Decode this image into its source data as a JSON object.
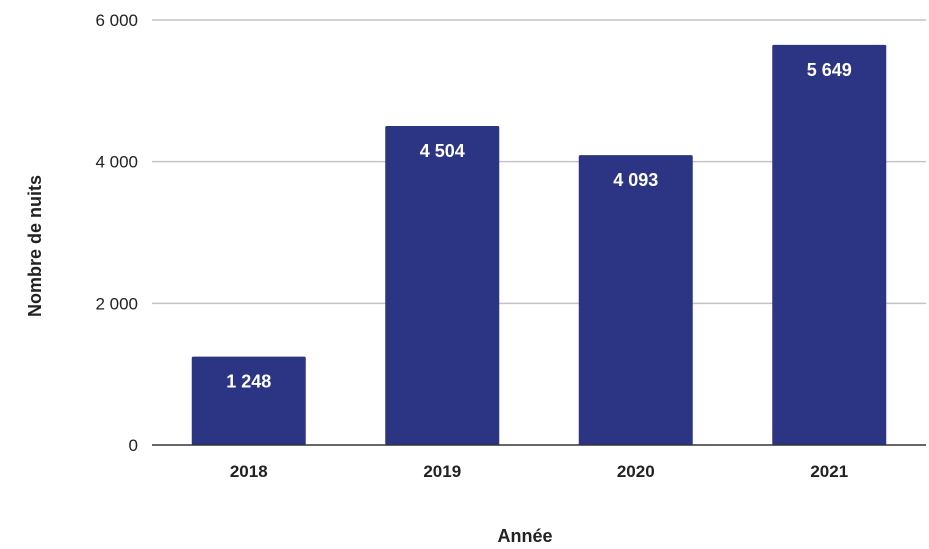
{
  "chart_data": {
    "type": "bar",
    "title": "",
    "xlabel": "Année",
    "ylabel": "Nombre de nuits",
    "categories": [
      "2018",
      "2019",
      "2020",
      "2021"
    ],
    "values": [
      1248,
      4504,
      4093,
      5649
    ],
    "data_labels": [
      "1 248",
      "4 504",
      "4 093",
      "5 649"
    ],
    "yticks": [
      0,
      2000,
      4000,
      6000
    ],
    "ytick_labels": [
      "0",
      "2 000",
      "4 000",
      "6 000"
    ],
    "ylim": [
      0,
      6000
    ],
    "grid": true,
    "legend": "none",
    "colors": {
      "bar": "#2b3584",
      "grid": "#c4c4c4",
      "baseline": "#333333",
      "label_inside": "#ffffff",
      "text": "#222222"
    }
  }
}
